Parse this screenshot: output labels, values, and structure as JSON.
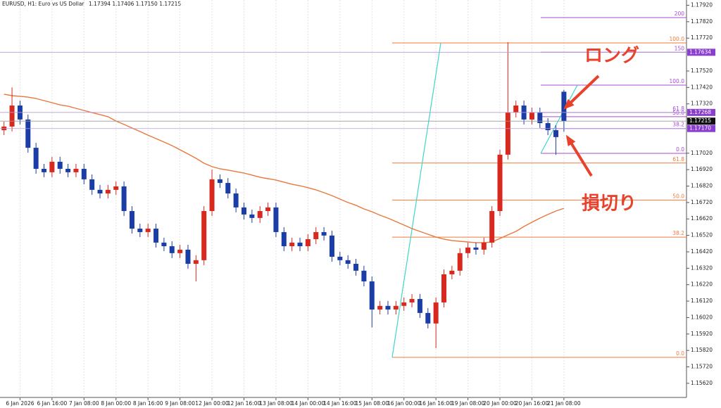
{
  "header": {
    "symbol": "EURUSD, H1:  Euro vs US Dollar",
    "prices": "1.17394 1.17406 1.17150 1.17215"
  },
  "chart_data": {
    "type": "candlestick",
    "categories": [
      null,
      null,
      "6 Jan 2026",
      null,
      null,
      null,
      "6 Jan 16:00",
      null,
      null,
      null,
      "7 Jan 08:00",
      null,
      null,
      null,
      "8 Jan 00:00",
      null,
      null,
      null,
      "8 Jan 16:00",
      null,
      null,
      null,
      "9 Jan 08:00",
      null,
      null,
      null,
      "12 Jan 00:00",
      null,
      null,
      null,
      "12 Jan 16:00",
      null,
      null,
      null,
      "13 Jan 08:00",
      null,
      null,
      null,
      "14 Jan 00:00",
      null,
      null,
      null,
      "14 Jan 16:00",
      null,
      null,
      null,
      "15 Jan 08:00",
      null,
      null,
      null,
      "16 Jan 00:00",
      null,
      null,
      null,
      "16 Jan 16:00",
      null,
      null,
      null,
      "19 Jan 08:00",
      null,
      null,
      null,
      "20 Jan 00:00",
      null,
      null,
      null,
      "20 Jan 16:00",
      null,
      null,
      null,
      "21 Jan 08:00"
    ],
    "open": [
      1.1716,
      1.17182,
      1.1731,
      1.17225,
      1.17053,
      1.16925,
      1.16904,
      1.16968,
      1.16925,
      1.16904,
      1.16925,
      1.16861,
      1.16797,
      1.16775,
      1.16797,
      1.16818,
      1.16668,
      1.16561,
      1.1654,
      1.16561,
      1.16476,
      1.16454,
      1.16412,
      1.16433,
      1.16347,
      1.16369,
      1.16668,
      1.16861,
      1.16839,
      1.16775,
      1.1669,
      1.16647,
      1.16626,
      1.16668,
      1.1669,
      1.1654,
      1.16454,
      1.16476,
      1.16454,
      1.16497,
      1.1654,
      1.16519,
      1.1639,
      1.16369,
      1.16347,
      1.16305,
      1.1624,
      1.16069,
      1.16091,
      1.16069,
      1.16091,
      1.16112,
      1.16133,
      1.16048,
      1.15984,
      1.16112,
      1.16283,
      1.16305,
      1.16412,
      1.16446,
      1.16433,
      1.16476,
      1.16668,
      1.17011,
      1.17267,
      1.1731,
      1.17225,
      1.17267,
      1.17203,
      1.1716,
      1.17394
    ],
    "high": [
      1.17212,
      1.1742,
      1.1734,
      1.17255,
      1.17083,
      1.16955,
      1.16998,
      1.16998,
      1.16955,
      1.16955,
      1.16955,
      1.16891,
      1.16827,
      1.16827,
      1.16848,
      1.16848,
      1.16698,
      1.16591,
      1.16591,
      1.16591,
      1.16506,
      1.16484,
      1.16463,
      1.16463,
      1.16399,
      1.16698,
      1.1692,
      1.16891,
      1.16869,
      1.16805,
      1.1672,
      1.16677,
      1.16698,
      1.1672,
      1.1672,
      1.1657,
      1.16506,
      1.16506,
      1.16527,
      1.1657,
      1.1657,
      1.16549,
      1.1642,
      1.16399,
      1.16377,
      1.16335,
      1.1627,
      1.16121,
      1.16121,
      1.16121,
      1.16142,
      1.16163,
      1.16163,
      1.16078,
      1.16142,
      1.16313,
      1.16335,
      1.16442,
      1.16476,
      1.16476,
      1.16506,
      1.16698,
      1.17041,
      1.17695,
      1.1734,
      1.1734,
      1.17297,
      1.17297,
      1.17233,
      1.1719,
      1.17406
    ],
    "low": [
      1.1713,
      1.17152,
      1.17195,
      1.17023,
      1.16895,
      1.16874,
      1.16874,
      1.16895,
      1.16874,
      1.16874,
      1.16831,
      1.16767,
      1.16745,
      1.16745,
      1.16767,
      1.16638,
      1.16531,
      1.1651,
      1.1651,
      1.16446,
      1.16424,
      1.16382,
      1.16382,
      1.16317,
      1.1624,
      1.16339,
      1.16638,
      1.16809,
      1.16745,
      1.1666,
      1.16617,
      1.16596,
      1.16596,
      1.16638,
      1.1651,
      1.16424,
      1.16424,
      1.16424,
      1.16424,
      1.16467,
      1.16489,
      1.1636,
      1.16339,
      1.16317,
      1.16275,
      1.1621,
      1.1596,
      1.16039,
      1.16039,
      1.16039,
      1.16061,
      1.16082,
      1.16018,
      1.15954,
      1.15834,
      1.16082,
      1.16253,
      1.16275,
      1.16382,
      1.16403,
      1.16403,
      1.16446,
      1.16638,
      1.16981,
      1.17237,
      1.17195,
      1.17195,
      1.17173,
      1.1713,
      1.1701,
      1.1715
    ],
    "close": [
      1.17182,
      1.1731,
      1.17225,
      1.17053,
      1.16925,
      1.16904,
      1.16968,
      1.16925,
      1.16904,
      1.16925,
      1.16861,
      1.16797,
      1.16775,
      1.16797,
      1.16818,
      1.16668,
      1.16561,
      1.1654,
      1.16561,
      1.16476,
      1.16454,
      1.16412,
      1.16433,
      1.16347,
      1.16369,
      1.16668,
      1.16861,
      1.16839,
      1.16775,
      1.1669,
      1.16647,
      1.16626,
      1.16668,
      1.1669,
      1.1654,
      1.16454,
      1.16476,
      1.16454,
      1.16497,
      1.1654,
      1.16519,
      1.1639,
      1.16369,
      1.16347,
      1.16305,
      1.1624,
      1.16069,
      1.16091,
      1.16069,
      1.16091,
      1.16112,
      1.16133,
      1.16048,
      1.15984,
      1.16112,
      1.16283,
      1.16305,
      1.16412,
      1.16446,
      1.16433,
      1.16476,
      1.16668,
      1.17011,
      1.17267,
      1.1731,
      1.17225,
      1.17267,
      1.17203,
      1.1716,
      1.17118,
      1.17215
    ],
    "up_color": "#d9281e",
    "down_color": "#1b3da6",
    "moving_average": {
      "color": "#e8783c",
      "values": [
        1.17379,
        1.1737,
        1.17366,
        1.17361,
        1.17353,
        1.1734,
        1.17327,
        1.17314,
        1.17306,
        1.17293,
        1.1728,
        1.17267,
        1.17255,
        1.17242,
        1.17216,
        1.17195,
        1.17173,
        1.17152,
        1.1713,
        1.17109,
        1.17088,
        1.17066,
        1.17041,
        1.17015,
        1.16989,
        1.16959,
        1.16938,
        1.16925,
        1.16917,
        1.16908,
        1.16899,
        1.16887,
        1.16874,
        1.16865,
        1.16857,
        1.16844,
        1.16831,
        1.16822,
        1.1681,
        1.16797,
        1.1678,
        1.16762,
        1.16741,
        1.1672,
        1.16703,
        1.16681,
        1.16664,
        1.16643,
        1.16625,
        1.16604,
        1.16583,
        1.16561,
        1.16544,
        1.16527,
        1.1651,
        1.16497,
        1.16489,
        1.16484,
        1.1648,
        1.16476,
        1.16476,
        1.1648,
        1.16501,
        1.16523,
        1.16544,
        1.16574,
        1.166,
        1.16625,
        1.16647,
        1.16668,
        1.16685
      ]
    },
    "ylim": [
      1.15534,
      1.17952
    ],
    "yticks": [
      {
        "value": 1.1562,
        "label": "1.15620"
      },
      {
        "value": 1.1572,
        "label": "1.15720"
      },
      {
        "value": 1.1582,
        "label": "1.15820"
      },
      {
        "value": 1.1592,
        "label": "1.15920"
      },
      {
        "value": 1.1602,
        "label": "1.16020"
      },
      {
        "value": 1.1612,
        "label": "1.16120"
      },
      {
        "value": 1.1622,
        "label": "1.16220"
      },
      {
        "value": 1.1632,
        "label": "1.16320"
      },
      {
        "value": 1.1642,
        "label": "1.16420"
      },
      {
        "value": 1.1652,
        "label": "1.16520"
      },
      {
        "value": 1.1662,
        "label": "1.16620"
      },
      {
        "value": 1.1672,
        "label": "1.16720"
      },
      {
        "value": 1.1682,
        "label": "1.16820"
      },
      {
        "value": 1.1692,
        "label": "1.16920"
      },
      {
        "value": 1.1702,
        "label": "1.17020"
      },
      {
        "value": 1.1732,
        "label": "1.17320"
      },
      {
        "value": 1.1742,
        "label": "1.17420"
      },
      {
        "value": 1.1752,
        "label": "1.17520"
      },
      {
        "value": 1.1772,
        "label": "1.17720"
      },
      {
        "value": 1.1782,
        "label": "1.17820"
      },
      {
        "value": 1.1792,
        "label": "1.17920"
      }
    ],
    "fibonacci": [
      {
        "color": "#ee7a3a",
        "trend_color": "#3fd6c8",
        "levels": [
          {
            "value": 1.15778,
            "label": "0.0"
          },
          {
            "value": 1.16509,
            "label": "38.2"
          },
          {
            "value": 1.16735,
            "label": "50.0"
          },
          {
            "value": 1.1696,
            "label": "61.8"
          },
          {
            "value": 1.17691,
            "label": "100.0"
          }
        ]
      },
      {
        "color": "#a64bd6",
        "trend_color": "#3fd6c8",
        "levels": [
          {
            "value": 1.17019,
            "label": "0.0"
          },
          {
            "value": 1.1717,
            "label": "38.2"
          },
          {
            "value": 1.17242,
            "label": "50.0"
          },
          {
            "value": 1.17268,
            "label": "61.8"
          },
          {
            "value": 1.17434,
            "label": "100.0"
          },
          {
            "value": 1.17634,
            "label": "150"
          },
          {
            "value": 1.17845,
            "label": "200"
          }
        ]
      }
    ],
    "price_markers": [
      {
        "value": 1.17634,
        "label": "1.17634",
        "color": "#8a3fd0"
      },
      {
        "value": 1.17268,
        "label": "1.17268",
        "color": "#8a3fd0"
      },
      {
        "value": 1.17215,
        "label": "1.17215",
        "color": "#111111"
      },
      {
        "value": 1.1717,
        "label": "1.17170",
        "color": "#8a3fd0"
      }
    ],
    "annotations": [
      {
        "text": "ロング",
        "color": "#e8412c"
      },
      {
        "text": "損切り",
        "color": "#e8412c"
      }
    ]
  }
}
